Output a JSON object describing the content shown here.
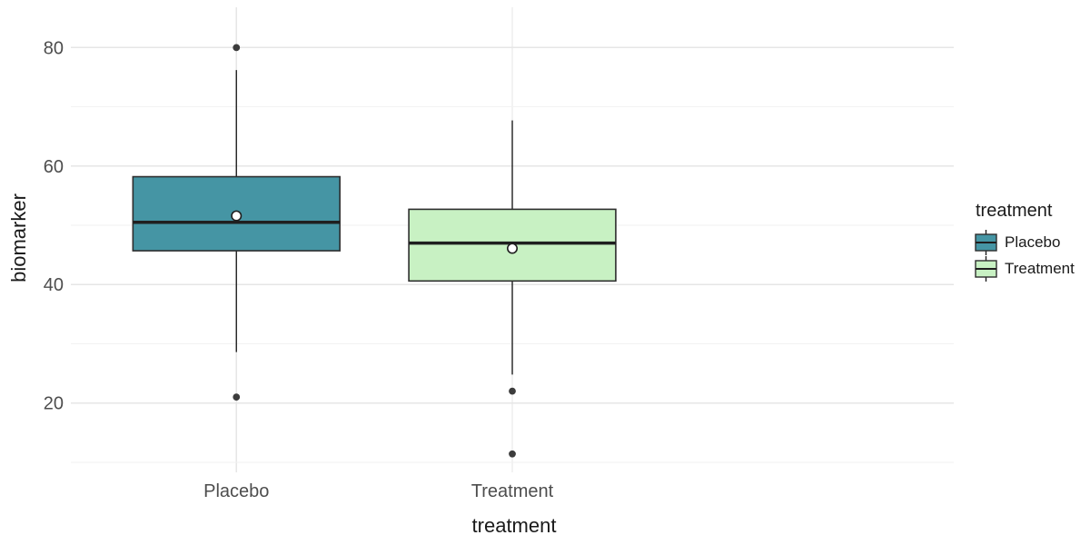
{
  "chart_data": {
    "type": "boxplot",
    "title": "",
    "xlabel": "treatment",
    "ylabel": "biomarker",
    "categories": [
      "Placebo",
      "Treatment"
    ],
    "y_ticks": [
      20,
      40,
      60,
      80
    ],
    "y_minor_ticks": [
      10,
      30,
      50,
      70
    ],
    "ylim": [
      8.3,
      86.8
    ],
    "grid": true,
    "series": [
      {
        "name": "Placebo",
        "fill": "#4595A4",
        "whisker_low": 28.6,
        "q1": 45.7,
        "median": 50.5,
        "q3": 58.2,
        "whisker_high": 76.2,
        "mean": 51.6,
        "outliers": [
          80,
          21
        ]
      },
      {
        "name": "Treatment",
        "fill": "#C8F1C3",
        "whisker_low": 24.8,
        "q1": 40.6,
        "median": 47,
        "q3": 52.7,
        "whisker_high": 67.7,
        "mean": 46.1,
        "outliers": [
          22,
          11.4
        ]
      }
    ],
    "legend": {
      "title": "treatment",
      "position": "right",
      "entries": [
        {
          "label": "Placebo",
          "color": "#4595A4"
        },
        {
          "label": "Treatment",
          "color": "#C8F1C3"
        }
      ]
    },
    "colors": {
      "grid_major": "#E6E6E6",
      "grid_minor": "#F2F2F2",
      "tick_text": "#4d4d4d",
      "box_border": "#2d2d2d",
      "median_line": "#1f1f1f",
      "whisker": "#1f1f1f",
      "outlier": "#3c3c3c",
      "mean_fill": "#ffffff",
      "mean_stroke": "#1f1f1f"
    }
  }
}
